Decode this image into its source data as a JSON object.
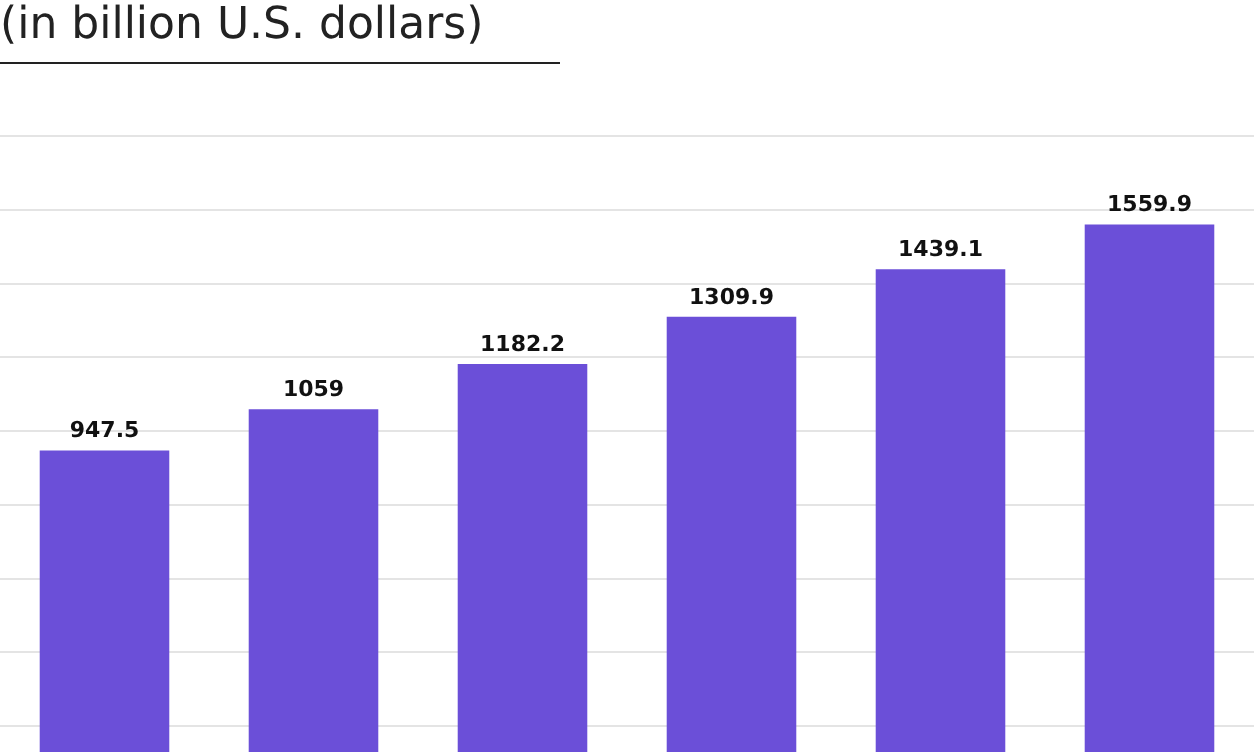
{
  "chart_data": {
    "type": "bar",
    "title": "(in billion U.S. dollars)",
    "categories": [
      null,
      null,
      null,
      null,
      null,
      null
    ],
    "values": [
      947.5,
      1059,
      1182.2,
      1309.9,
      1439.1,
      1559.9
    ],
    "color": "#6b4fd8",
    "data_labels": true,
    "grid": "y"
  }
}
